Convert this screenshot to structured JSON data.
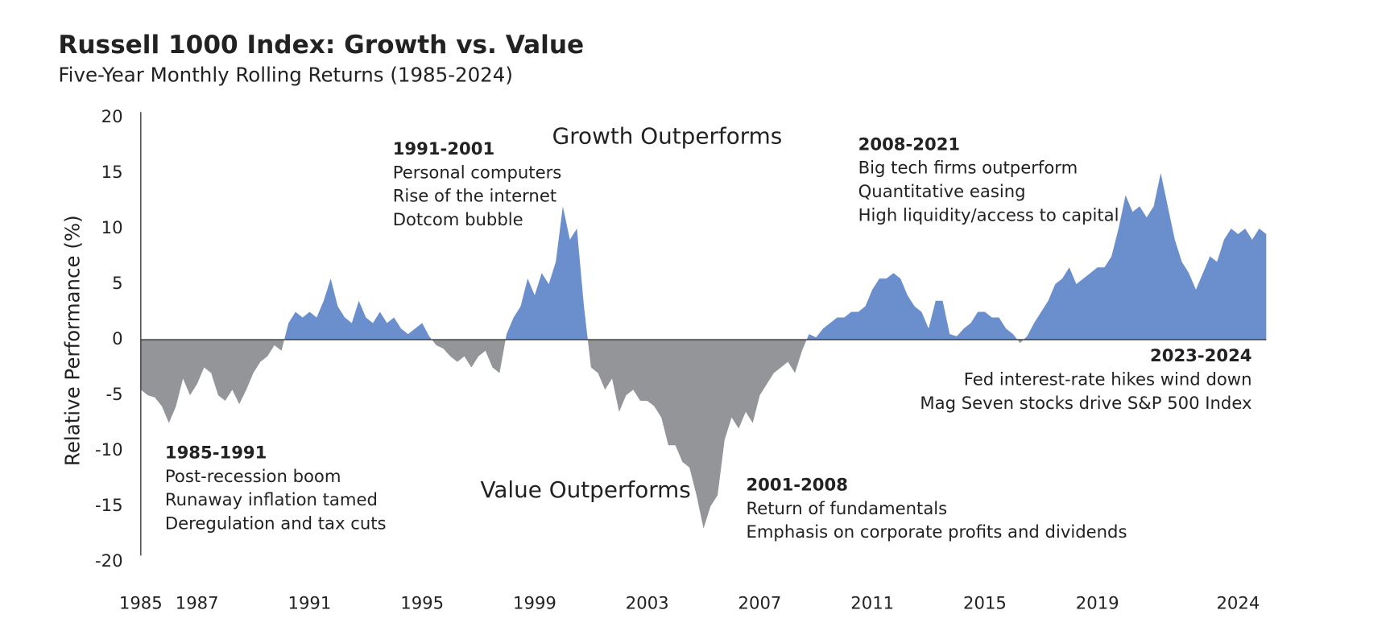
{
  "chart_data": {
    "type": "area",
    "title": "Russell 1000 Index: Growth vs. Value",
    "subtitle": "Five-Year Monthly Rolling Returns (1985-2024)",
    "y_label": "Relative Performance (%)",
    "positive_label": "Growth Outperforms",
    "negative_label": "Value Outperforms",
    "positive_color": "#6a8fcc",
    "negative_color": "#939598",
    "xlim": [
      1985,
      2025
    ],
    "ylim": [
      -20,
      20
    ],
    "yticks": [
      -20,
      -15,
      -10,
      -5,
      0,
      5,
      10,
      15,
      20
    ],
    "xticks": [
      1985,
      1987,
      1991,
      1995,
      1999,
      2003,
      2007,
      2011,
      2015,
      2019,
      2024
    ],
    "x": [
      1985,
      1985.25,
      1985.5,
      1985.75,
      1986,
      1986.25,
      1986.5,
      1986.75,
      1987,
      1987.25,
      1987.5,
      1987.75,
      1988,
      1988.25,
      1988.5,
      1988.75,
      1989,
      1989.25,
      1989.5,
      1989.75,
      1990,
      1990.25,
      1990.5,
      1990.75,
      1991,
      1991.25,
      1991.5,
      1991.75,
      1992,
      1992.25,
      1992.5,
      1992.75,
      1993,
      1993.25,
      1993.5,
      1993.75,
      1994,
      1994.25,
      1994.5,
      1994.75,
      1995,
      1995.25,
      1995.5,
      1995.75,
      1996,
      1996.25,
      1996.5,
      1996.75,
      1997,
      1997.25,
      1997.5,
      1997.75,
      1998,
      1998.25,
      1998.5,
      1998.75,
      1999,
      1999.25,
      1999.5,
      1999.75,
      2000,
      2000.25,
      2000.5,
      2000.75,
      2001,
      2001.25,
      2001.5,
      2001.75,
      2002,
      2002.25,
      2002.5,
      2002.75,
      2003,
      2003.25,
      2003.5,
      2003.75,
      2004,
      2004.25,
      2004.5,
      2004.75,
      2005,
      2005.25,
      2005.5,
      2005.75,
      2006,
      2006.25,
      2006.5,
      2006.75,
      2007,
      2007.25,
      2007.5,
      2007.75,
      2008,
      2008.25,
      2008.5,
      2008.75,
      2009,
      2009.25,
      2009.5,
      2009.75,
      2010,
      2010.25,
      2010.5,
      2010.75,
      2011,
      2011.25,
      2011.5,
      2011.75,
      2012,
      2012.25,
      2012.5,
      2012.75,
      2013,
      2013.25,
      2013.5,
      2013.75,
      2014,
      2014.25,
      2014.5,
      2014.75,
      2015,
      2015.25,
      2015.5,
      2015.75,
      2016,
      2016.25,
      2016.5,
      2016.75,
      2017,
      2017.25,
      2017.5,
      2017.75,
      2018,
      2018.25,
      2018.5,
      2018.75,
      2019,
      2019.25,
      2019.5,
      2019.75,
      2020,
      2020.25,
      2020.5,
      2020.75,
      2021,
      2021.25,
      2021.5,
      2021.75,
      2022,
      2022.25,
      2022.5,
      2022.75,
      2023,
      2023.25,
      2023.5,
      2023.75,
      2024,
      2024.25,
      2024.5,
      2024.75,
      2025
    ],
    "values": [
      -4.5,
      -5,
      -5.2,
      -6,
      -7.5,
      -6,
      -3.5,
      -5,
      -4,
      -2.5,
      -3,
      -5,
      -5.5,
      -4.5,
      -5.8,
      -4.5,
      -3,
      -2,
      -1.5,
      -0.5,
      -1,
      1.5,
      2.5,
      2,
      2.5,
      2,
      3.5,
      5.5,
      3,
      2,
      1.5,
      3.5,
      2,
      1.5,
      2.5,
      1.5,
      2,
      1,
      0.5,
      1,
      1.5,
      0.3,
      -0.5,
      -0.8,
      -1.5,
      -2,
      -1.5,
      -2.5,
      -1.5,
      -1,
      -2.5,
      -3,
      0.5,
      2,
      3,
      5.5,
      4,
      6,
      5,
      7,
      12,
      9,
      10,
      3,
      -2.5,
      -3,
      -4.5,
      -3.5,
      -6.5,
      -5,
      -4.5,
      -5.5,
      -5.5,
      -6,
      -7,
      -9.5,
      -9.5,
      -11,
      -11.5,
      -14,
      -17,
      -15,
      -14,
      -9,
      -7,
      -8,
      -6.5,
      -7.5,
      -5,
      -4,
      -3,
      -2.5,
      -2,
      -3,
      -1,
      0.5,
      0.2,
      1,
      1.5,
      2,
      2,
      2.5,
      2.5,
      3,
      4.5,
      5.5,
      5.5,
      6,
      5.5,
      4,
      3,
      2.5,
      1,
      3.5,
      3.5,
      0.5,
      0.3,
      1,
      1.5,
      2.5,
      2.5,
      2,
      2,
      1,
      0.5,
      -0.3,
      0.3,
      1.5,
      2.5,
      3.5,
      5,
      5.5,
      6.5,
      5,
      5.5,
      6,
      6.5,
      6.5,
      7.5,
      10,
      13,
      11.5,
      12,
      11,
      12,
      15,
      12,
      9,
      7,
      6,
      4.5,
      6,
      7.5,
      7,
      9,
      10,
      9.5,
      10,
      9,
      10,
      9.5
    ],
    "annotations": [
      {
        "title": "1985-1991",
        "lines": [
          "Post-recession boom",
          "Runaway inflation tamed",
          "Deregulation and tax cuts"
        ]
      },
      {
        "title": "1991-2001",
        "lines": [
          "Personal computers",
          "Rise of the internet",
          "Dotcom bubble"
        ]
      },
      {
        "title": "2008-2021",
        "lines": [
          "Big tech firms outperform",
          "Quantitative easing",
          "High liquidity/access to capital"
        ]
      },
      {
        "title": "2001-2008",
        "lines": [
          "Return of fundamentals",
          "Emphasis on corporate profits and dividends"
        ]
      },
      {
        "title": "2023-2024",
        "lines": [
          "Fed interest-rate hikes wind down",
          "Mag Seven stocks drive S&P 500 Index"
        ]
      }
    ]
  }
}
